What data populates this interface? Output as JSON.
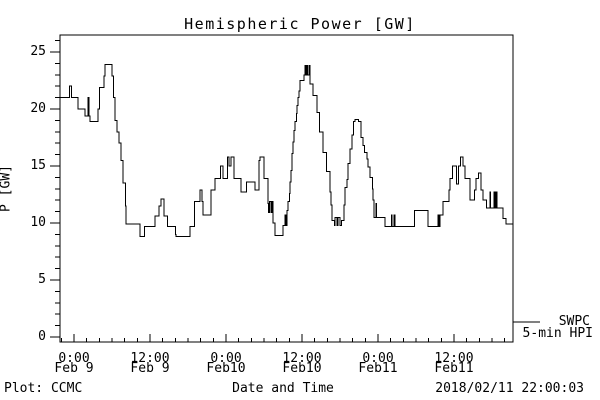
{
  "title": "Hemispheric Power [GW]",
  "y_axis_label": "P [GW]",
  "footer": {
    "left": "Plot: CCMC",
    "center": "Date and Time",
    "right": "2018/02/11 22:00:03"
  },
  "legend": {
    "line1": "SWPC",
    "line2": "5-min HPI"
  },
  "colors": {
    "line": "#000000",
    "axis": "#000000",
    "background": "#ffffff"
  },
  "chart_data": {
    "type": "line",
    "step": true,
    "title": "Hemispheric Power [GW]",
    "xlabel": "Date and Time",
    "ylabel": "P [GW]",
    "series_name": "SWPC 5-min HPI",
    "x_unit": "hours since 2018-02-09 00:00 UT",
    "xlim": [
      -2.2,
      69.3
    ],
    "ylim": [
      -0.44,
      26.5
    ],
    "grid": false,
    "legend_position": "right-bottom-outside",
    "y_major_ticks": [
      0,
      5,
      10,
      15,
      20,
      25
    ],
    "y_minor_step": 1,
    "x_major_ticks": [
      0,
      12,
      24,
      36,
      48,
      60
    ],
    "x_major_labels": [
      [
        "0:00",
        "Feb 9"
      ],
      [
        "12:00",
        "Feb 9"
      ],
      [
        "0:00",
        "Feb10"
      ],
      [
        "12:00",
        "Feb10"
      ],
      [
        "0:00",
        "Feb11"
      ],
      [
        "12:00",
        "Feb11"
      ]
    ],
    "x_minor_step": 2,
    "points": [
      [
        -2.2,
        21
      ],
      [
        -0.7,
        22
      ],
      [
        -0.4,
        21
      ],
      [
        0.6,
        20
      ],
      [
        1.7,
        19.4
      ],
      [
        2.2,
        21
      ],
      [
        2.4,
        19.4
      ],
      [
        2.5,
        18.9
      ],
      [
        3.8,
        20
      ],
      [
        4.0,
        21.9
      ],
      [
        4.7,
        22.9
      ],
      [
        4.9,
        23.9
      ],
      [
        6.0,
        22.9
      ],
      [
        6.2,
        21
      ],
      [
        6.5,
        19
      ],
      [
        6.8,
        18
      ],
      [
        7.1,
        17
      ],
      [
        7.4,
        15.5
      ],
      [
        7.7,
        13.5
      ],
      [
        8.1,
        11.5
      ],
      [
        8.2,
        9.9
      ],
      [
        10.4,
        8.8
      ],
      [
        11.1,
        9.7
      ],
      [
        12.8,
        10.6
      ],
      [
        13.4,
        11.5
      ],
      [
        13.7,
        12.1
      ],
      [
        14.2,
        10.6
      ],
      [
        14.8,
        9.7
      ],
      [
        16.0,
        9.0
      ],
      [
        16.1,
        8.8
      ],
      [
        18.3,
        9.7
      ],
      [
        19.0,
        11.9
      ],
      [
        19.9,
        12.9
      ],
      [
        20.2,
        11.9
      ],
      [
        20.4,
        10.7
      ],
      [
        21.6,
        12.9
      ],
      [
        22.3,
        13.9
      ],
      [
        23.1,
        15.0
      ],
      [
        23.5,
        13.9
      ],
      [
        24.2,
        15.8
      ],
      [
        24.5,
        15.0
      ],
      [
        24.8,
        15.8
      ],
      [
        25.3,
        13.9
      ],
      [
        26.4,
        12.7
      ],
      [
        27.2,
        13.6
      ],
      [
        28.6,
        12.9
      ],
      [
        29.2,
        15.5
      ],
      [
        29.4,
        15.8
      ],
      [
        30.0,
        13.9
      ],
      [
        30.6,
        11.7
      ],
      [
        30.7,
        10.9
      ],
      [
        30.9,
        11.9
      ],
      [
        31.1,
        10.9
      ],
      [
        31.3,
        11.9
      ],
      [
        31.4,
        10.0
      ],
      [
        31.7,
        8.9
      ],
      [
        33.0,
        9.8
      ],
      [
        33.3,
        10.7
      ],
      [
        33.5,
        9.8
      ],
      [
        33.6,
        11.1
      ],
      [
        33.8,
        11.9
      ],
      [
        34.0,
        12.6
      ],
      [
        34.1,
        13.6
      ],
      [
        34.3,
        14.6
      ],
      [
        34.4,
        16.1
      ],
      [
        34.6,
        17.1
      ],
      [
        34.7,
        18.1
      ],
      [
        34.9,
        18.9
      ],
      [
        35.1,
        19.6
      ],
      [
        35.2,
        20.3
      ],
      [
        35.4,
        21.0
      ],
      [
        35.5,
        21.6
      ],
      [
        35.7,
        22.5
      ],
      [
        36.3,
        23.0
      ],
      [
        36.5,
        23.8
      ],
      [
        36.6,
        23.0
      ],
      [
        36.8,
        23.8
      ],
      [
        36.9,
        23.0
      ],
      [
        37.1,
        23.8
      ],
      [
        37.3,
        22.2
      ],
      [
        37.7,
        21.2
      ],
      [
        38.4,
        19.7
      ],
      [
        38.8,
        18.0
      ],
      [
        39.3,
        16.2
      ],
      [
        39.9,
        14.5
      ],
      [
        40.4,
        12.7
      ],
      [
        40.6,
        11.6
      ],
      [
        40.7,
        10.2
      ],
      [
        41.1,
        9.8
      ],
      [
        41.2,
        10.5
      ],
      [
        41.5,
        9.8
      ],
      [
        41.7,
        10.5
      ],
      [
        42.0,
        9.8
      ],
      [
        42.2,
        10.2
      ],
      [
        42.6,
        11.6
      ],
      [
        42.8,
        13.1
      ],
      [
        43.1,
        13.8
      ],
      [
        43.3,
        15.2
      ],
      [
        43.6,
        16.5
      ],
      [
        43.9,
        17.7
      ],
      [
        44.1,
        18.9
      ],
      [
        44.4,
        19.1
      ],
      [
        44.9,
        18.9
      ],
      [
        45.3,
        17.5
      ],
      [
        45.6,
        16.8
      ],
      [
        45.9,
        16.2
      ],
      [
        46.3,
        15.6
      ],
      [
        46.4,
        14.9
      ],
      [
        46.7,
        14.0
      ],
      [
        47.1,
        13.0
      ],
      [
        47.2,
        12.0
      ],
      [
        47.4,
        10.5
      ],
      [
        47.7,
        11.7
      ],
      [
        47.8,
        10.5
      ],
      [
        49.1,
        9.7
      ],
      [
        50.1,
        10.7
      ],
      [
        50.2,
        9.7
      ],
      [
        50.5,
        10.7
      ],
      [
        50.7,
        9.7
      ],
      [
        53.8,
        11.1
      ],
      [
        55.9,
        9.7
      ],
      [
        57.5,
        10.7
      ],
      [
        57.6,
        9.7
      ],
      [
        57.8,
        10.7
      ],
      [
        58.3,
        11.9
      ],
      [
        59.2,
        12.9
      ],
      [
        59.4,
        13.9
      ],
      [
        59.8,
        15.0
      ],
      [
        60.4,
        13.4
      ],
      [
        60.7,
        15.0
      ],
      [
        61.0,
        15.8
      ],
      [
        61.4,
        15.0
      ],
      [
        61.7,
        13.9
      ],
      [
        62.5,
        12.0
      ],
      [
        63.2,
        12.9
      ],
      [
        63.5,
        13.9
      ],
      [
        63.9,
        14.4
      ],
      [
        64.3,
        12.9
      ],
      [
        64.6,
        12.0
      ],
      [
        65.1,
        11.3
      ],
      [
        65.7,
        12.7
      ],
      [
        65.8,
        11.3
      ],
      [
        66.3,
        12.7
      ],
      [
        66.5,
        11.3
      ],
      [
        66.6,
        12.7
      ],
      [
        66.8,
        11.3
      ],
      [
        67.7,
        10.4
      ],
      [
        68.2,
        9.9
      ],
      [
        69.3,
        9.9
      ]
    ]
  }
}
